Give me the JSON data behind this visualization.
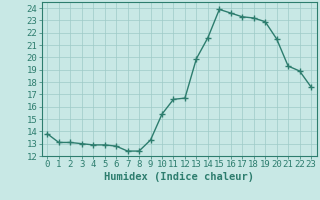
{
  "x": [
    0,
    1,
    2,
    3,
    4,
    5,
    6,
    7,
    8,
    9,
    10,
    11,
    12,
    13,
    14,
    15,
    16,
    17,
    18,
    19,
    20,
    21,
    22,
    23
  ],
  "y": [
    13.8,
    13.1,
    13.1,
    13.0,
    12.9,
    12.9,
    12.8,
    12.4,
    12.4,
    13.3,
    15.4,
    16.6,
    16.7,
    19.9,
    21.6,
    23.9,
    23.6,
    23.3,
    23.2,
    22.9,
    21.5,
    19.3,
    18.9,
    17.6
  ],
  "line_color": "#2d7d6e",
  "marker": "+",
  "marker_size": 4,
  "bg_color": "#c8e8e5",
  "grid_color": "#9ecbc7",
  "xlabel": "Humidex (Indice chaleur)",
  "xlim": [
    -0.5,
    23.5
  ],
  "ylim": [
    12,
    24.5
  ],
  "yticks": [
    12,
    13,
    14,
    15,
    16,
    17,
    18,
    19,
    20,
    21,
    22,
    23,
    24
  ],
  "xticks": [
    0,
    1,
    2,
    3,
    4,
    5,
    6,
    7,
    8,
    9,
    10,
    11,
    12,
    13,
    14,
    15,
    16,
    17,
    18,
    19,
    20,
    21,
    22,
    23
  ],
  "tick_label_fontsize": 6.5,
  "xlabel_fontsize": 7.5,
  "line_width": 1.0,
  "marker_edge_width": 1.0
}
